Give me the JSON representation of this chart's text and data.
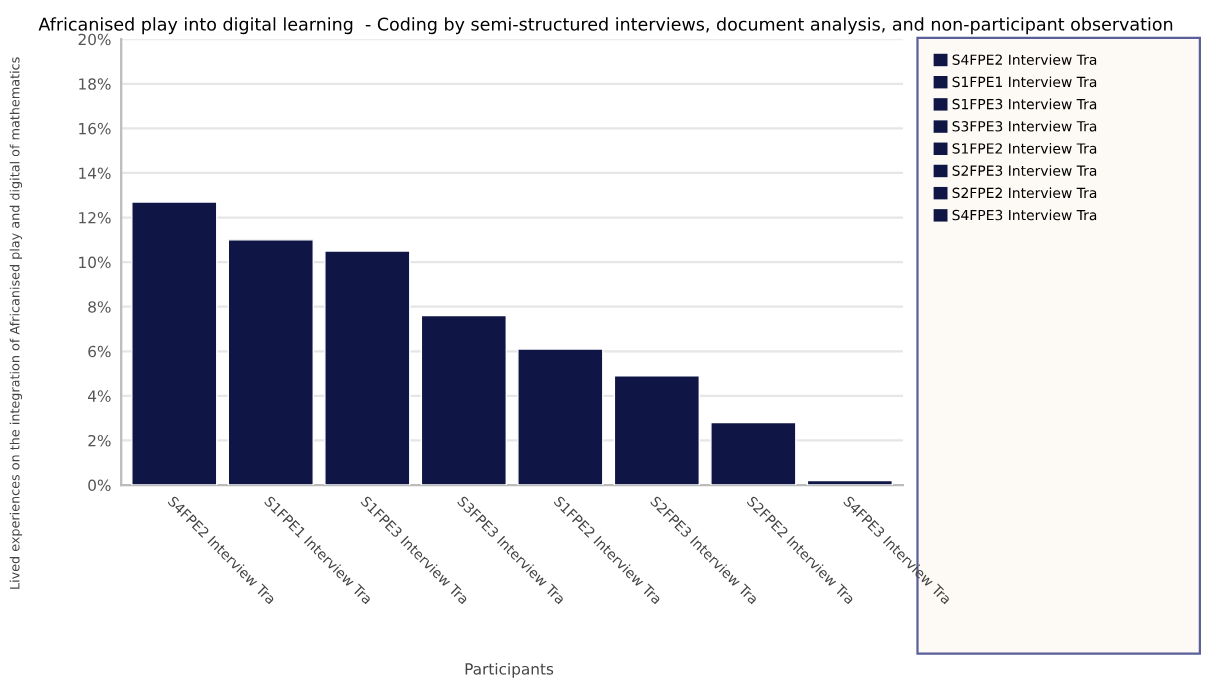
{
  "chart_data": {
    "type": "bar",
    "title": "Africanised play into digital learning  - Coding by semi-structured interviews, document analysis, and non-participant observation",
    "xlabel": "Participants",
    "ylabel": "Lived experiences on the integration of Africanised play and digital of mathematics",
    "categories": [
      "S4FPE2 Interview Tra",
      "S1FPE1 Interview Tra",
      "S1FPE3 Interview Tra",
      "S3FPE3 Interview Tra",
      "S1FPE2 Interview Tra",
      "S2FPE3 Interview Tra",
      "S2FPE2 Interview Tra",
      "S4FPE3 Interview Tra"
    ],
    "series": [
      {
        "name": "S4FPE2 Interview Tra",
        "color": "#0f1646",
        "values": [
          12.7,
          null,
          null,
          null,
          null,
          null,
          null,
          null
        ]
      },
      {
        "name": "S1FPE1 Interview Tra",
        "color": "#0f1646",
        "values": [
          null,
          11.0,
          null,
          null,
          null,
          null,
          null,
          null
        ]
      },
      {
        "name": "S1FPE3 Interview Tra",
        "color": "#0f1646",
        "values": [
          null,
          null,
          10.5,
          null,
          null,
          null,
          null,
          null
        ]
      },
      {
        "name": "S3FPE3 Interview Tra",
        "color": "#0f1646",
        "values": [
          null,
          null,
          null,
          7.6,
          null,
          null,
          null,
          null
        ]
      },
      {
        "name": "S1FPE2 Interview Tra",
        "color": "#0f1646",
        "values": [
          null,
          null,
          null,
          null,
          6.1,
          null,
          null,
          null
        ]
      },
      {
        "name": "S2FPE3 Interview Tra",
        "color": "#0f1646",
        "values": [
          null,
          null,
          null,
          null,
          null,
          4.9,
          null,
          null
        ]
      },
      {
        "name": "S2FPE2 Interview Tra",
        "color": "#0f1646",
        "values": [
          null,
          null,
          null,
          null,
          null,
          null,
          2.8,
          null
        ]
      },
      {
        "name": "S4FPE3 Interview Tra",
        "color": "#0f1646",
        "values": [
          null,
          null,
          null,
          null,
          null,
          null,
          null,
          0.2
        ]
      }
    ],
    "ylim": [
      0,
      20
    ],
    "yticks": [
      {
        "value": 0,
        "label": "0%"
      },
      {
        "value": 2,
        "label": "2%"
      },
      {
        "value": 4,
        "label": "4%"
      },
      {
        "value": 6,
        "label": "6%"
      },
      {
        "value": 8,
        "label": "8%"
      },
      {
        "value": 10,
        "label": "10%"
      },
      {
        "value": 12,
        "label": "12%"
      },
      {
        "value": 14,
        "label": "14%"
      },
      {
        "value": 16,
        "label": "16%"
      },
      {
        "value": 18,
        "label": "18%"
      },
      {
        "value": 20,
        "label": "20%"
      }
    ],
    "grid": "y",
    "legend": "right"
  }
}
